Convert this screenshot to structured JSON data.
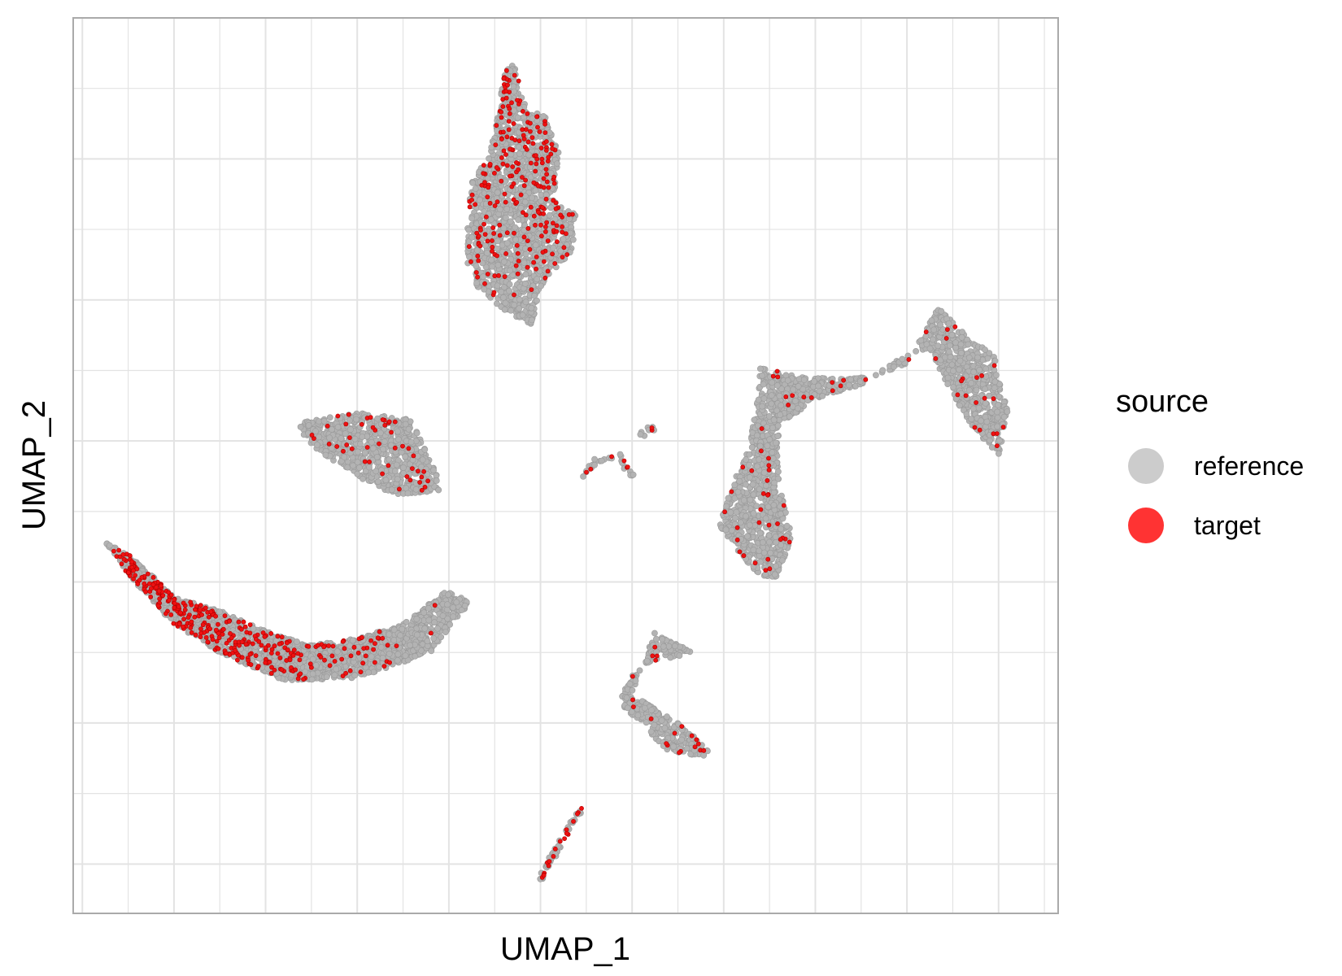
{
  "chart_data": {
    "type": "scatter",
    "title": "",
    "xlabel": "UMAP_1",
    "ylabel": "UMAP_2",
    "xlim": [
      -5.1,
      5.65
    ],
    "ylim": [
      -3.35,
      3.0
    ],
    "tick_labels_shown": false,
    "grid": true,
    "legend": {
      "title": "source",
      "placement": "right",
      "entries": [
        {
          "label": "reference",
          "color": "#cccccc"
        },
        {
          "label": "target",
          "color": "#ff3333"
        }
      ]
    },
    "series": [
      {
        "name": "reference",
        "color": "#b3b3b3",
        "clusters": [
          {
            "shape": "polygon",
            "points": [
              [
                -0.3,
                2.7
              ],
              [
                -0.15,
                2.35
              ],
              [
                0.05,
                2.3
              ],
              [
                0.2,
                2.05
              ],
              [
                0.15,
                1.7
              ],
              [
                0.4,
                1.6
              ],
              [
                0.35,
                1.35
              ],
              [
                0.05,
                1.15
              ],
              [
                -0.1,
                0.83
              ],
              [
                -0.35,
                0.9
              ],
              [
                -0.7,
                1.1
              ],
              [
                -0.8,
                1.25
              ],
              [
                -0.8,
                1.55
              ],
              [
                -0.75,
                1.85
              ],
              [
                -0.55,
                2.05
              ],
              [
                -0.45,
                2.35
              ],
              [
                -0.4,
                2.6
              ]
            ],
            "count": 1400
          },
          {
            "shape": "polygon",
            "points": [
              [
                -2.65,
                0.13
              ],
              [
                -2.0,
                0.2
              ],
              [
                -1.4,
                0.15
              ],
              [
                -1.05,
                -0.35
              ],
              [
                -1.6,
                -0.38
              ],
              [
                -2.0,
                -0.25
              ],
              [
                -2.35,
                -0.1
              ],
              [
                -2.55,
                0.0
              ]
            ],
            "count": 750
          },
          {
            "shape": "polygon",
            "points": [
              [
                -4.75,
                -0.72
              ],
              [
                -4.5,
                -0.8
              ],
              [
                -4.0,
                -1.1
              ],
              [
                -3.5,
                -1.2
              ],
              [
                -3.0,
                -1.35
              ],
              [
                -2.5,
                -1.45
              ],
              [
                -2.0,
                -1.4
              ],
              [
                -1.5,
                -1.3
              ],
              [
                -1.0,
                -1.05
              ],
              [
                -0.78,
                -1.15
              ],
              [
                -1.2,
                -1.5
              ],
              [
                -2.0,
                -1.68
              ],
              [
                -2.8,
                -1.7
              ],
              [
                -3.5,
                -1.5
              ],
              [
                -4.0,
                -1.3
              ],
              [
                -4.5,
                -0.95
              ]
            ],
            "count": 1800
          },
          {
            "shape": "polygon",
            "points": [
              [
                2.4,
                0.52
              ],
              [
                2.9,
                0.45
              ],
              [
                3.6,
                0.45
              ],
              [
                4.0,
                0.55
              ],
              [
                4.35,
                0.95
              ],
              [
                4.55,
                0.8
              ],
              [
                4.95,
                0.6
              ],
              [
                5.1,
                0.2
              ],
              [
                5.0,
                -0.1
              ],
              [
                4.7,
                0.1
              ],
              [
                4.4,
                0.45
              ],
              [
                4.25,
                0.65
              ],
              [
                3.95,
                0.6
              ],
              [
                3.5,
                0.4
              ],
              [
                3.0,
                0.3
              ],
              [
                2.6,
                0.1
              ],
              [
                2.6,
                -0.3
              ],
              [
                2.75,
                -0.7
              ],
              [
                2.55,
                -1.0
              ],
              [
                2.3,
                -0.9
              ],
              [
                1.95,
                -0.6
              ],
              [
                2.1,
                -0.3
              ],
              [
                2.25,
                -0.1
              ],
              [
                2.35,
                0.2
              ]
            ],
            "count": 1650
          },
          {
            "shape": "polygon",
            "points": [
              [
                1.25,
                -1.35
              ],
              [
                1.65,
                -1.5
              ],
              [
                1.05,
                -1.6
              ],
              [
                0.85,
                -1.85
              ],
              [
                1.4,
                -2.2
              ],
              [
                1.95,
                -2.25
              ],
              [
                1.5,
                -2.0
              ],
              [
                1.0,
                -1.8
              ]
            ],
            "count": 320
          },
          {
            "shape": "line",
            "points": [
              [
                0.0,
                -3.1
              ],
              [
                0.45,
                -2.6
              ]
            ],
            "count": 40
          },
          {
            "shape": "line",
            "points": [
              [
                0.45,
                -0.25
              ],
              [
                0.6,
                -0.15
              ],
              [
                0.85,
                -0.1
              ],
              [
                1.0,
                -0.25
              ]
            ],
            "count": 25
          },
          {
            "shape": "line",
            "points": [
              [
                1.1,
                0.05
              ],
              [
                1.25,
                0.1
              ]
            ],
            "count": 8
          }
        ]
      },
      {
        "name": "target",
        "color": "#ee1111",
        "clusters": [
          {
            "region": 0,
            "weight": "top-dense",
            "count": 240
          },
          {
            "region": 1,
            "count": 45
          },
          {
            "region": 2,
            "weight": "left-dense",
            "count": 340
          },
          {
            "region": 3,
            "count": 65
          },
          {
            "region": 4,
            "count": 20
          },
          {
            "region": 5,
            "count": 18
          },
          {
            "region": 6,
            "count": 6
          },
          {
            "region": 7,
            "count": 2
          }
        ]
      }
    ]
  }
}
